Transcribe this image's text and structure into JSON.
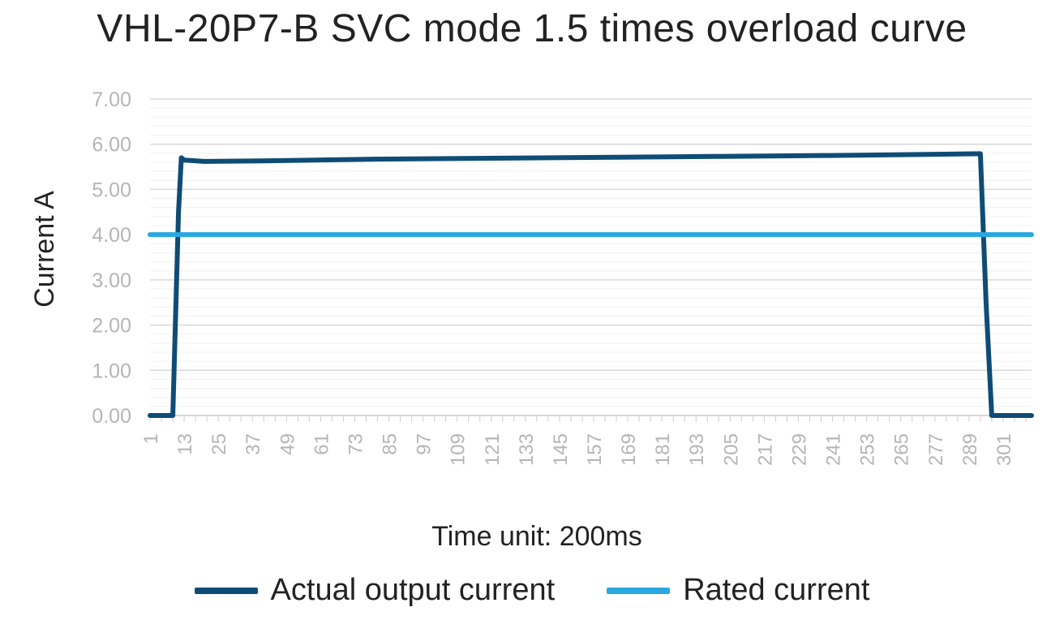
{
  "chart_data": {
    "type": "line",
    "title": "VHL-20P7-B SVC mode 1.5 times overload curve",
    "xlabel": "Time unit: 200ms",
    "ylabel": "Current A",
    "ylim": [
      0,
      7
    ],
    "yticks": [
      "0.00",
      "1.00",
      "2.00",
      "3.00",
      "4.00",
      "5.00",
      "6.00",
      "7.00"
    ],
    "xlim": [
      1,
      311
    ],
    "xticks": [
      "1",
      "13",
      "25",
      "37",
      "49",
      "61",
      "73",
      "85",
      "97",
      "109",
      "121",
      "133",
      "145",
      "157",
      "169",
      "181",
      "193",
      "205",
      "217",
      "229",
      "241",
      "253",
      "265",
      "277",
      "289",
      "301"
    ],
    "grid": true,
    "legend_position": "bottom",
    "series": [
      {
        "name": "Actual output current",
        "color": "#0f4c75",
        "x": [
          1,
          9,
          11,
          12,
          13,
          20,
          40,
          80,
          120,
          160,
          200,
          240,
          280,
          293,
          295,
          297,
          311
        ],
        "y": [
          0,
          0,
          4.5,
          5.7,
          5.65,
          5.62,
          5.63,
          5.67,
          5.69,
          5.71,
          5.73,
          5.75,
          5.78,
          5.79,
          2.5,
          0,
          0
        ]
      },
      {
        "name": "Rated current",
        "color": "#29a8e0",
        "x": [
          1,
          311
        ],
        "y": [
          4,
          4
        ]
      }
    ]
  }
}
